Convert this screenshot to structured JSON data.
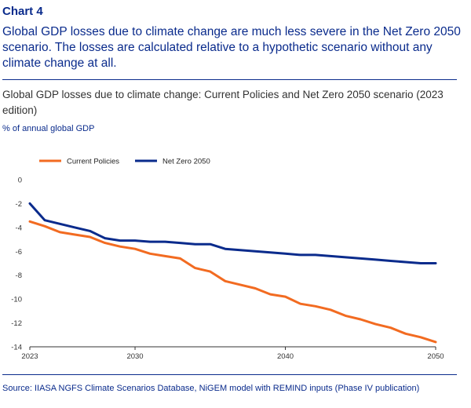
{
  "header": {
    "chart_label": "Chart 4",
    "headline": "Global GDP losses due to climate change are much less severe in the Net Zero 2050 scenario. The losses are calculated relative to a hypothetic scenario without any climate change at all."
  },
  "chart_data": {
    "type": "line",
    "title": "Global GDP losses due to climate change: Current Policies and Net Zero 2050 scenario (2023 edition)",
    "ylabel": "% of annual global GDP",
    "xlabel": "",
    "xlim": [
      2023,
      2050
    ],
    "ylim": [
      -14,
      0
    ],
    "yticks": [
      0,
      -2,
      -4,
      -6,
      -8,
      -10,
      -12,
      -14
    ],
    "xticks": [
      2023,
      2030,
      2040,
      2050
    ],
    "legend_position": "top-left",
    "grid": false,
    "x": [
      2023,
      2024,
      2025,
      2026,
      2027,
      2028,
      2029,
      2030,
      2031,
      2032,
      2033,
      2034,
      2035,
      2036,
      2037,
      2038,
      2039,
      2040,
      2041,
      2042,
      2043,
      2044,
      2045,
      2046,
      2047,
      2048,
      2049,
      2050
    ],
    "series": [
      {
        "name": "Current Policies",
        "color": "#f26b21",
        "values": [
          -3.5,
          -3.9,
          -4.4,
          -4.6,
          -4.8,
          -5.3,
          -5.6,
          -5.8,
          -6.2,
          -6.4,
          -6.6,
          -7.4,
          -7.7,
          -8.5,
          -8.8,
          -9.1,
          -9.6,
          -9.8,
          -10.4,
          -10.6,
          -10.9,
          -11.4,
          -11.7,
          -12.1,
          -12.4,
          -12.9,
          -13.2,
          -13.6
        ]
      },
      {
        "name": "Net Zero 2050",
        "color": "#0a2b8c",
        "values": [
          -2.0,
          -3.4,
          -3.7,
          -4.0,
          -4.3,
          -4.9,
          -5.1,
          -5.1,
          -5.2,
          -5.2,
          -5.3,
          -5.4,
          -5.4,
          -5.8,
          -5.9,
          -6.0,
          -6.1,
          -6.2,
          -6.3,
          -6.3,
          -6.4,
          -6.5,
          -6.6,
          -6.7,
          -6.8,
          -6.9,
          -7.0,
          -7.0
        ]
      }
    ]
  },
  "footer": {
    "source": "Source: IIASA NGFS Climate Scenarios Database, NiGEM model with REMIND inputs (Phase IV publication)"
  }
}
